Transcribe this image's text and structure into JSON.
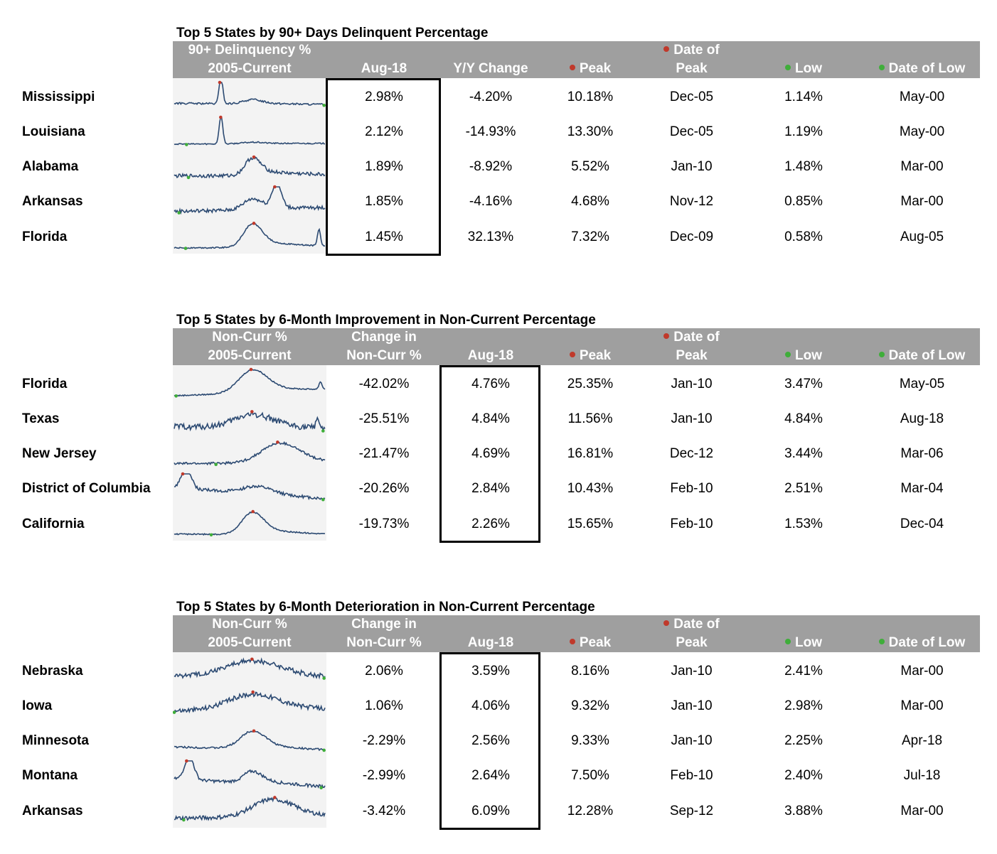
{
  "accent": {
    "header_bg": "#9f9f9f",
    "peak_dot": "#c0392b",
    "low_dot": "#3fae3a",
    "spark_line": "#2c4a72",
    "spark_bg": "#f3f3f3"
  },
  "sections": [
    {
      "title": "Top 5 States by 90+ Days Delinquent Percentage",
      "headers": {
        "spark": [
          "90+ Delinquency %",
          "2005-Current"
        ],
        "c1": [
          "",
          "Aug-18"
        ],
        "c2": [
          "",
          "Y/Y Change"
        ],
        "peak": [
          "",
          "Peak"
        ],
        "peak_date": [
          "Date of",
          "Peak"
        ],
        "low": [
          "",
          "Low"
        ],
        "low_date": [
          "",
          "Date of Low"
        ]
      },
      "highlight_col": 1,
      "rows": [
        {
          "state": "Mississippi",
          "c1": "2.98%",
          "c2": "-4.20%",
          "peak": "10.18%",
          "peak_date": "Dec-05",
          "low": "1.14%",
          "low_date": "May-00"
        },
        {
          "state": "Louisiana",
          "c1": "2.12%",
          "c2": "-14.93%",
          "peak": "13.30%",
          "peak_date": "Dec-05",
          "low": "1.19%",
          "low_date": "May-00"
        },
        {
          "state": "Alabama",
          "c1": "1.89%",
          "c2": "-8.92%",
          "peak": "5.52%",
          "peak_date": "Jan-10",
          "low": "1.48%",
          "low_date": "Mar-00"
        },
        {
          "state": "Arkansas",
          "c1": "1.85%",
          "c2": "-4.16%",
          "peak": "4.68%",
          "peak_date": "Nov-12",
          "low": "0.85%",
          "low_date": "Mar-00"
        },
        {
          "state": "Florida",
          "c1": "1.45%",
          "c2": "32.13%",
          "peak": "7.32%",
          "peak_date": "Dec-09",
          "low": "0.58%",
          "low_date": "Aug-05"
        }
      ]
    },
    {
      "title": "Top 5 States by 6-Month Improvement in Non-Current Percentage",
      "headers": {
        "spark": [
          "Non-Curr %",
          "2005-Current"
        ],
        "c1": [
          "Change in",
          "Non-Curr %"
        ],
        "c2": [
          "",
          "Aug-18"
        ],
        "peak": [
          "",
          "Peak"
        ],
        "peak_date": [
          "Date of",
          "Peak"
        ],
        "low": [
          "",
          "Low"
        ],
        "low_date": [
          "",
          "Date of Low"
        ]
      },
      "highlight_col": 2,
      "rows": [
        {
          "state": "Florida",
          "c1": "-42.02%",
          "c2": "4.76%",
          "peak": "25.35%",
          "peak_date": "Jan-10",
          "low": "3.47%",
          "low_date": "May-05"
        },
        {
          "state": "Texas",
          "c1": "-25.51%",
          "c2": "4.84%",
          "peak": "11.56%",
          "peak_date": "Jan-10",
          "low": "4.84%",
          "low_date": "Aug-18"
        },
        {
          "state": "New Jersey",
          "c1": "-21.47%",
          "c2": "4.69%",
          "peak": "16.81%",
          "peak_date": "Dec-12",
          "low": "3.44%",
          "low_date": "Mar-06"
        },
        {
          "state": "District of Columbia",
          "c1": "-20.26%",
          "c2": "2.84%",
          "peak": "10.43%",
          "peak_date": "Feb-10",
          "low": "2.51%",
          "low_date": "Mar-04"
        },
        {
          "state": "California",
          "c1": "-19.73%",
          "c2": "2.26%",
          "peak": "15.65%",
          "peak_date": "Feb-10",
          "low": "1.53%",
          "low_date": "Dec-04"
        }
      ]
    },
    {
      "title": "Top 5 States by 6-Month Deterioration in Non-Current Percentage",
      "headers": {
        "spark": [
          "Non-Curr %",
          "2005-Current"
        ],
        "c1": [
          "Change in",
          "Non-Curr %"
        ],
        "c2": [
          "",
          "Aug-18"
        ],
        "peak": [
          "",
          "Peak"
        ],
        "peak_date": [
          "Date of",
          "Peak"
        ],
        "low": [
          "",
          "Low"
        ],
        "low_date": [
          "",
          "Date of Low"
        ]
      },
      "highlight_col": 2,
      "rows": [
        {
          "state": "Nebraska",
          "c1": "2.06%",
          "c2": "3.59%",
          "peak": "8.16%",
          "peak_date": "Jan-10",
          "low": "2.41%",
          "low_date": "Mar-00"
        },
        {
          "state": "Iowa",
          "c1": "1.06%",
          "c2": "4.06%",
          "peak": "9.32%",
          "peak_date": "Jan-10",
          "low": "2.98%",
          "low_date": "Mar-00"
        },
        {
          "state": "Minnesota",
          "c1": "-2.29%",
          "c2": "2.56%",
          "peak": "9.33%",
          "peak_date": "Jan-10",
          "low": "2.25%",
          "low_date": "Apr-18"
        },
        {
          "state": "Montana",
          "c1": "-2.99%",
          "c2": "2.64%",
          "peak": "7.50%",
          "peak_date": "Feb-10",
          "low": "2.40%",
          "low_date": "Jul-18"
        },
        {
          "state": "Arkansas",
          "c1": "-3.42%",
          "c2": "6.09%",
          "peak": "12.28%",
          "peak_date": "Sep-12",
          "low": "3.88%",
          "low_date": "Mar-00"
        }
      ]
    }
  ],
  "chart_data": [
    {
      "type": "table",
      "title": "Top 5 States by 90+ Days Delinquent Percentage",
      "columns": [
        "90+ Delinquency % 2005-Current",
        "Aug-18",
        "Y/Y Change",
        "Peak",
        "Date of Peak",
        "Low",
        "Date of Low"
      ],
      "rows": [
        [
          "Mississippi",
          "2.98%",
          "-4.20%",
          "10.18%",
          "Dec-05",
          "1.14%",
          "May-00"
        ],
        [
          "Louisiana",
          "2.12%",
          "-14.93%",
          "13.30%",
          "Dec-05",
          "1.19%",
          "May-00"
        ],
        [
          "Alabama",
          "1.89%",
          "-8.92%",
          "5.52%",
          "Jan-10",
          "1.48%",
          "Mar-00"
        ],
        [
          "Arkansas",
          "1.85%",
          "-4.16%",
          "4.68%",
          "Nov-12",
          "0.85%",
          "Mar-00"
        ],
        [
          "Florida",
          "1.45%",
          "32.13%",
          "7.32%",
          "Dec-09",
          "0.58%",
          "Aug-05"
        ]
      ]
    },
    {
      "type": "table",
      "title": "Top 5 States by 6-Month Improvement in Non-Current Percentage",
      "columns": [
        "Non-Curr % 2005-Current",
        "Change in Non-Curr %",
        "Aug-18",
        "Peak",
        "Date of Peak",
        "Low",
        "Date of Low"
      ],
      "rows": [
        [
          "Florida",
          "-42.02%",
          "4.76%",
          "25.35%",
          "Jan-10",
          "3.47%",
          "May-05"
        ],
        [
          "Texas",
          "-25.51%",
          "4.84%",
          "11.56%",
          "Jan-10",
          "4.84%",
          "Aug-18"
        ],
        [
          "New Jersey",
          "-21.47%",
          "4.69%",
          "16.81%",
          "Dec-12",
          "3.44%",
          "Mar-06"
        ],
        [
          "District of Columbia",
          "-20.26%",
          "2.84%",
          "10.43%",
          "Feb-10",
          "2.51%",
          "Mar-04"
        ],
        [
          "California",
          "-19.73%",
          "2.26%",
          "15.65%",
          "Feb-10",
          "1.53%",
          "Dec-04"
        ]
      ]
    },
    {
      "type": "table",
      "title": "Top 5 States by 6-Month Deterioration in Non-Current Percentage",
      "columns": [
        "Non-Curr % 2005-Current",
        "Change in Non-Curr %",
        "Aug-18",
        "Peak",
        "Date of Peak",
        "Low",
        "Date of Low"
      ],
      "rows": [
        [
          "Nebraska",
          "2.06%",
          "3.59%",
          "8.16%",
          "Jan-10",
          "2.41%",
          "Mar-00"
        ],
        [
          "Iowa",
          "1.06%",
          "4.06%",
          "9.32%",
          "Jan-10",
          "2.98%",
          "Mar-00"
        ],
        [
          "Minnesota",
          "-2.29%",
          "2.56%",
          "9.33%",
          "Jan-10",
          "2.25%",
          "Apr-18"
        ],
        [
          "Montana",
          "-2.99%",
          "2.64%",
          "7.50%",
          "Feb-10",
          "2.40%",
          "Jul-18"
        ],
        [
          "Arkansas",
          "-3.42%",
          "6.09%",
          "12.28%",
          "Sep-12",
          "3.88%",
          "Mar-00"
        ]
      ]
    }
  ]
}
